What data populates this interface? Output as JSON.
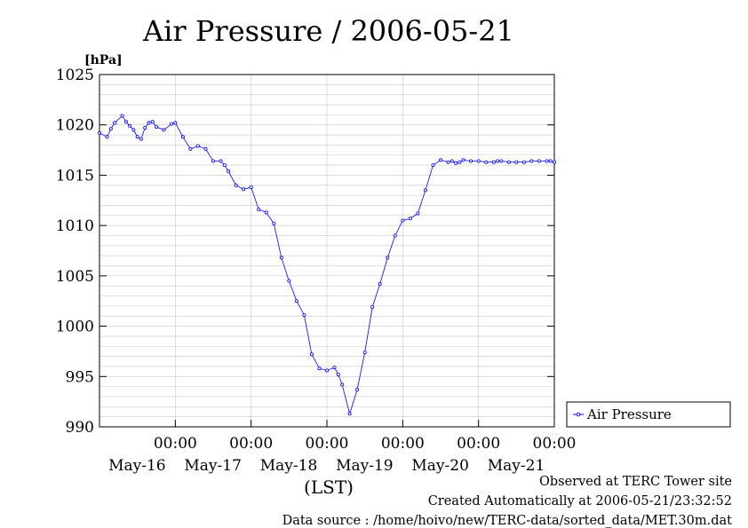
{
  "title": "Air Pressure / 2006-05-21",
  "footer": {
    "observed": "Observed at TERC Tower site",
    "created": "Created Automatically at 2006-05-21/23:32:52",
    "source": "Data source : /home/hoivo/new/TERC-data/sorted_data/MET.30m.dat"
  },
  "chart_data": {
    "type": "line",
    "title": "Air Pressure / 2006-05-21",
    "ylabel": "[hPa]",
    "xlabel": "(LST)",
    "ylim": [
      990,
      1025
    ],
    "yticks": [
      990,
      995,
      1000,
      1005,
      1010,
      1015,
      1020,
      1025
    ],
    "xlim_days": [
      0,
      6
    ],
    "xticks": [
      {
        "day": 1,
        "time": "00:00",
        "date": "May-16"
      },
      {
        "day": 2,
        "time": "00:00",
        "date": "May-17"
      },
      {
        "day": 3,
        "time": "00:00",
        "date": "May-18"
      },
      {
        "day": 4,
        "time": "00:00",
        "date": "May-19"
      },
      {
        "day": 5,
        "time": "00:00",
        "date": "May-20"
      },
      {
        "day": 6,
        "time": "00:00",
        "date": "May-21"
      }
    ],
    "grid": true,
    "legend": "right",
    "series": [
      {
        "name": "Air Pressure",
        "color": "#0000ff",
        "x": [
          0.0,
          0.1,
          0.15,
          0.2,
          0.3,
          0.35,
          0.4,
          0.45,
          0.5,
          0.55,
          0.6,
          0.65,
          0.7,
          0.75,
          0.85,
          0.95,
          1.0,
          1.1,
          1.2,
          1.3,
          1.4,
          1.5,
          1.6,
          1.65,
          1.7,
          1.8,
          1.9,
          2.0,
          2.1,
          2.2,
          2.3,
          2.4,
          2.5,
          2.6,
          2.7,
          2.8,
          2.9,
          3.0,
          3.1,
          3.15,
          3.2,
          3.3,
          3.4,
          3.5,
          3.6,
          3.7,
          3.8,
          3.9,
          4.0,
          4.1,
          4.2,
          4.3,
          4.4,
          4.5,
          4.6,
          4.65,
          4.7,
          4.75,
          4.8,
          4.9,
          5.0,
          5.1,
          5.2,
          5.25,
          5.3,
          5.4,
          5.5,
          5.6,
          5.7,
          5.8,
          5.9,
          5.95,
          6.0
        ],
        "y": [
          1019.2,
          1018.8,
          1019.6,
          1020.2,
          1020.9,
          1020.3,
          1019.9,
          1019.5,
          1018.8,
          1018.6,
          1019.7,
          1020.2,
          1020.3,
          1019.8,
          1019.5,
          1020.1,
          1020.2,
          1018.8,
          1017.6,
          1017.9,
          1017.6,
          1016.4,
          1016.4,
          1016.0,
          1015.4,
          1014.0,
          1013.6,
          1013.8,
          1011.6,
          1011.3,
          1010.2,
          1006.8,
          1004.5,
          1002.5,
          1001.1,
          997.2,
          995.8,
          995.6,
          995.9,
          995.2,
          994.2,
          991.3,
          993.7,
          997.4,
          1001.9,
          1004.2,
          1006.8,
          1009.0,
          1010.5,
          1010.7,
          1011.2,
          1013.5,
          1016.0,
          1016.5,
          1016.3,
          1016.4,
          1016.2,
          1016.3,
          1016.5,
          1016.4,
          1016.4,
          1016.3,
          1016.3,
          1016.4,
          1016.4,
          1016.3,
          1016.3,
          1016.3,
          1016.4,
          1016.4,
          1016.4,
          1016.4,
          1016.3
        ]
      }
    ]
  }
}
